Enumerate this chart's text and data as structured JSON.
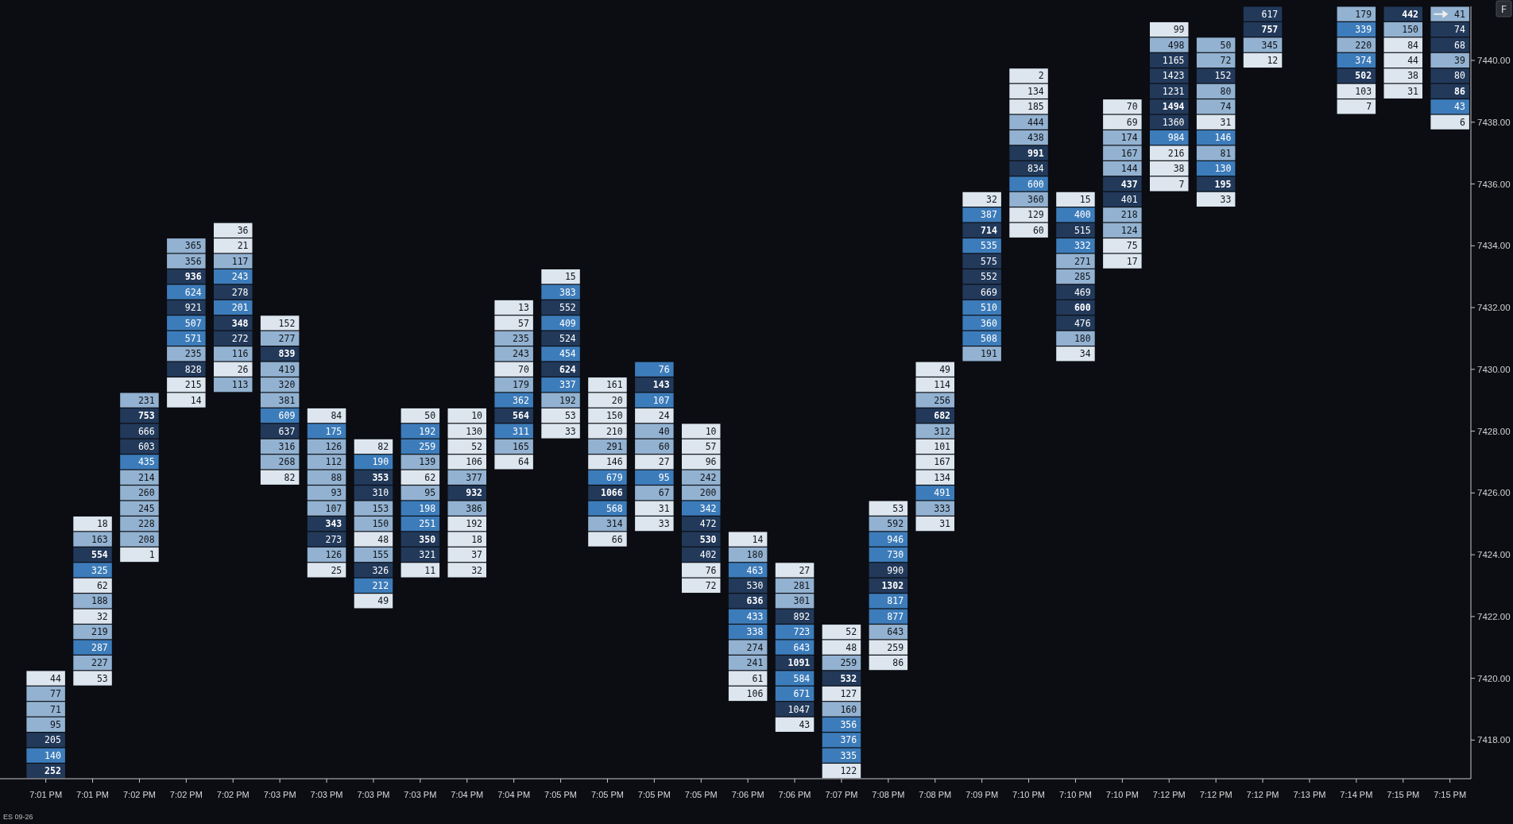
{
  "chart_data": {
    "type": "heatmap",
    "categories": [
      "7:01 PM",
      "7:01 PM",
      "7:02 PM",
      "7:02 PM",
      "7:02 PM",
      "7:03 PM",
      "7:03 PM",
      "7:03 PM",
      "7:03 PM",
      "7:04 PM",
      "7:04 PM",
      "7:05 PM",
      "7:05 PM",
      "7:05 PM",
      "7:05 PM",
      "7:06 PM",
      "7:06 PM",
      "7:07 PM",
      "7:08 PM",
      "7:08 PM",
      "7:09 PM",
      "7:10 PM",
      "7:10 PM",
      "7:10 PM",
      "7:12 PM",
      "7:12 PM",
      "7:12 PM",
      "7:13 PM",
      "7:14 PM",
      "7:15 PM",
      "7:15 PM"
    ],
    "y_categories": [
      null,
      null,
      null,
      "7440.00",
      null,
      null,
      null,
      "7438.00",
      null,
      null,
      null,
      "7436.00",
      null,
      null,
      null,
      "7434.00",
      null,
      null,
      null,
      "7432.00",
      null,
      null,
      null,
      "7430.00",
      null,
      null,
      null,
      "7428.00",
      null,
      null,
      null,
      "7426.00",
      null,
      null,
      null,
      "7424.00",
      null,
      null,
      null,
      "7422.00",
      null,
      null,
      null,
      "7420.00",
      null,
      null,
      null,
      "7418.00",
      null,
      null
    ],
    "data_labels": true,
    "cells": [
      [
        null,
        null,
        null,
        null,
        null,
        null,
        null,
        null,
        null,
        null,
        null,
        null,
        null,
        null,
        null,
        null,
        null,
        null,
        null,
        null,
        null,
        null,
        null,
        null,
        null,
        null,
        617,
        null,
        179,
        442,
        41
      ],
      [
        null,
        null,
        null,
        null,
        null,
        null,
        null,
        null,
        null,
        null,
        null,
        null,
        null,
        null,
        null,
        null,
        null,
        null,
        null,
        null,
        null,
        null,
        null,
        null,
        99,
        null,
        757,
        null,
        339,
        150,
        74
      ],
      [
        null,
        null,
        null,
        null,
        null,
        null,
        null,
        null,
        null,
        null,
        null,
        null,
        null,
        null,
        null,
        null,
        null,
        null,
        null,
        null,
        null,
        null,
        null,
        null,
        498,
        50,
        345,
        null,
        220,
        84,
        68
      ],
      [
        null,
        null,
        null,
        null,
        null,
        null,
        null,
        null,
        null,
        null,
        null,
        null,
        null,
        null,
        null,
        null,
        null,
        null,
        null,
        null,
        null,
        null,
        null,
        null,
        1165,
        72,
        12,
        null,
        374,
        44,
        39
      ],
      [
        null,
        null,
        null,
        null,
        null,
        null,
        null,
        null,
        null,
        null,
        null,
        null,
        null,
        null,
        null,
        null,
        null,
        null,
        null,
        null,
        null,
        2,
        null,
        null,
        1423,
        152,
        null,
        null,
        502,
        38,
        80
      ],
      [
        null,
        null,
        null,
        null,
        null,
        null,
        null,
        null,
        null,
        null,
        null,
        null,
        null,
        null,
        null,
        null,
        null,
        null,
        null,
        null,
        null,
        134,
        null,
        null,
        1231,
        80,
        null,
        null,
        103,
        31,
        86
      ],
      [
        null,
        null,
        null,
        null,
        null,
        null,
        null,
        null,
        null,
        null,
        null,
        null,
        null,
        null,
        null,
        null,
        null,
        null,
        null,
        null,
        null,
        185,
        null,
        70,
        1494,
        74,
        null,
        null,
        7,
        null,
        43
      ],
      [
        null,
        null,
        null,
        null,
        null,
        null,
        null,
        null,
        null,
        null,
        null,
        null,
        null,
        null,
        null,
        null,
        null,
        null,
        null,
        null,
        null,
        444,
        null,
        69,
        1360,
        31,
        null,
        null,
        null,
        null,
        6
      ],
      [
        null,
        null,
        null,
        null,
        null,
        null,
        null,
        null,
        null,
        null,
        null,
        null,
        null,
        null,
        null,
        null,
        null,
        null,
        null,
        null,
        null,
        438,
        null,
        174,
        984,
        146,
        null,
        null,
        null,
        null,
        null
      ],
      [
        null,
        null,
        null,
        null,
        null,
        null,
        null,
        null,
        null,
        null,
        null,
        null,
        null,
        null,
        null,
        null,
        null,
        null,
        null,
        null,
        null,
        991,
        null,
        167,
        216,
        81,
        null,
        null,
        null,
        null,
        null
      ],
      [
        null,
        null,
        null,
        null,
        null,
        null,
        null,
        null,
        null,
        null,
        null,
        null,
        null,
        null,
        null,
        null,
        null,
        null,
        null,
        null,
        null,
        834,
        null,
        144,
        38,
        130,
        null,
        null,
        null,
        null,
        null
      ],
      [
        null,
        null,
        null,
        null,
        null,
        null,
        null,
        null,
        null,
        null,
        null,
        null,
        null,
        null,
        null,
        null,
        null,
        null,
        null,
        null,
        null,
        600,
        null,
        437,
        7,
        195,
        null,
        null,
        null,
        null,
        null
      ],
      [
        null,
        null,
        null,
        null,
        null,
        null,
        null,
        null,
        null,
        null,
        null,
        null,
        null,
        null,
        null,
        null,
        null,
        null,
        null,
        null,
        32,
        360,
        15,
        401,
        null,
        33,
        null,
        null,
        null,
        null,
        null
      ],
      [
        null,
        null,
        null,
        null,
        null,
        null,
        null,
        null,
        null,
        null,
        null,
        null,
        null,
        null,
        null,
        null,
        null,
        null,
        null,
        null,
        387,
        129,
        400,
        218,
        null,
        null,
        null,
        null,
        null,
        null,
        null
      ],
      [
        null,
        null,
        null,
        null,
        36,
        null,
        null,
        null,
        null,
        null,
        null,
        null,
        null,
        null,
        null,
        null,
        null,
        null,
        null,
        null,
        714,
        60,
        515,
        124,
        null,
        null,
        null,
        null,
        null,
        null,
        null
      ],
      [
        null,
        null,
        null,
        365,
        21,
        null,
        null,
        null,
        null,
        null,
        null,
        null,
        null,
        null,
        null,
        null,
        null,
        null,
        null,
        null,
        535,
        null,
        332,
        75,
        null,
        null,
        null,
        null,
        null,
        null,
        null
      ],
      [
        null,
        null,
        null,
        356,
        117,
        null,
        null,
        null,
        null,
        null,
        null,
        null,
        null,
        null,
        null,
        null,
        null,
        null,
        null,
        null,
        575,
        null,
        271,
        17,
        null,
        null,
        null,
        null,
        null,
        null,
        null
      ],
      [
        null,
        null,
        null,
        936,
        243,
        null,
        null,
        null,
        null,
        null,
        null,
        15,
        null,
        null,
        null,
        null,
        null,
        null,
        null,
        null,
        552,
        null,
        285,
        null,
        null,
        null,
        null,
        null,
        null,
        null,
        null
      ],
      [
        null,
        null,
        null,
        624,
        278,
        null,
        null,
        null,
        null,
        null,
        null,
        383,
        null,
        null,
        null,
        null,
        null,
        null,
        null,
        null,
        669,
        null,
        469,
        null,
        null,
        null,
        null,
        null,
        null,
        null,
        null
      ],
      [
        null,
        null,
        null,
        921,
        201,
        null,
        null,
        null,
        null,
        null,
        13,
        552,
        null,
        null,
        null,
        null,
        null,
        null,
        null,
        null,
        510,
        null,
        600,
        null,
        null,
        null,
        null,
        null,
        null,
        null,
        null
      ],
      [
        null,
        null,
        null,
        507,
        348,
        152,
        null,
        null,
        null,
        null,
        57,
        409,
        null,
        null,
        null,
        null,
        null,
        null,
        null,
        null,
        360,
        null,
        476,
        null,
        null,
        null,
        null,
        null,
        null,
        null,
        null
      ],
      [
        null,
        null,
        null,
        571,
        272,
        277,
        null,
        null,
        null,
        null,
        235,
        524,
        null,
        null,
        null,
        null,
        null,
        null,
        null,
        null,
        508,
        null,
        180,
        null,
        null,
        null,
        null,
        null,
        null,
        null,
        null
      ],
      [
        null,
        null,
        null,
        235,
        116,
        839,
        null,
        null,
        null,
        null,
        243,
        454,
        null,
        null,
        null,
        null,
        null,
        null,
        null,
        null,
        191,
        null,
        34,
        null,
        null,
        null,
        null,
        null,
        null,
        null,
        null
      ],
      [
        null,
        null,
        null,
        828,
        26,
        419,
        null,
        null,
        null,
        null,
        70,
        624,
        null,
        76,
        null,
        null,
        null,
        null,
        null,
        49,
        null,
        null,
        null,
        null,
        null,
        null,
        null,
        null,
        null,
        null,
        null
      ],
      [
        null,
        null,
        null,
        215,
        113,
        320,
        null,
        null,
        null,
        null,
        179,
        337,
        161,
        143,
        null,
        null,
        null,
        null,
        null,
        114,
        null,
        null,
        null,
        null,
        null,
        null,
        null,
        null,
        null,
        null,
        null
      ],
      [
        null,
        null,
        231,
        14,
        null,
        381,
        null,
        null,
        null,
        null,
        362,
        192,
        20,
        107,
        null,
        null,
        null,
        null,
        null,
        256,
        null,
        null,
        null,
        null,
        null,
        null,
        null,
        null,
        null,
        null,
        null
      ],
      [
        null,
        null,
        753,
        null,
        null,
        609,
        84,
        null,
        50,
        10,
        564,
        53,
        150,
        24,
        null,
        null,
        null,
        null,
        null,
        682,
        null,
        null,
        null,
        null,
        null,
        null,
        null,
        null,
        null,
        null,
        null
      ],
      [
        null,
        null,
        666,
        null,
        null,
        637,
        175,
        null,
        192,
        130,
        311,
        33,
        210,
        40,
        10,
        null,
        null,
        null,
        null,
        312,
        null,
        null,
        null,
        null,
        null,
        null,
        null,
        null,
        null,
        null,
        null
      ],
      [
        null,
        null,
        603,
        null,
        null,
        316,
        126,
        82,
        259,
        52,
        165,
        null,
        291,
        60,
        57,
        null,
        null,
        null,
        null,
        101,
        null,
        null,
        null,
        null,
        null,
        null,
        null,
        null,
        null,
        null,
        null
      ],
      [
        null,
        null,
        435,
        null,
        null,
        268,
        112,
        190,
        139,
        106,
        64,
        null,
        146,
        27,
        96,
        null,
        null,
        null,
        null,
        167,
        null,
        null,
        null,
        null,
        null,
        null,
        null,
        null,
        null,
        null,
        null
      ],
      [
        null,
        null,
        214,
        null,
        null,
        82,
        88,
        353,
        62,
        377,
        null,
        null,
        679,
        95,
        242,
        null,
        null,
        null,
        null,
        134,
        null,
        null,
        null,
        null,
        null,
        null,
        null,
        null,
        null,
        null,
        null
      ],
      [
        null,
        null,
        260,
        null,
        null,
        null,
        93,
        310,
        95,
        932,
        null,
        null,
        1066,
        67,
        200,
        null,
        null,
        null,
        null,
        491,
        null,
        null,
        null,
        null,
        null,
        null,
        null,
        null,
        null,
        null,
        null
      ],
      [
        null,
        null,
        245,
        null,
        null,
        null,
        107,
        153,
        198,
        386,
        null,
        null,
        568,
        31,
        342,
        null,
        null,
        null,
        53,
        333,
        null,
        null,
        null,
        null,
        null,
        null,
        null,
        null,
        null,
        null,
        null
      ],
      [
        null,
        18,
        228,
        null,
        null,
        null,
        343,
        150,
        251,
        192,
        null,
        null,
        314,
        33,
        472,
        null,
        null,
        null,
        592,
        31,
        null,
        null,
        null,
        null,
        null,
        null,
        null,
        null,
        null,
        null,
        null
      ],
      [
        null,
        163,
        208,
        null,
        null,
        null,
        273,
        48,
        350,
        18,
        null,
        null,
        66,
        null,
        530,
        14,
        null,
        null,
        946,
        null,
        null,
        null,
        null,
        null,
        null,
        null,
        null,
        null,
        null,
        null,
        null
      ],
      [
        null,
        554,
        1,
        null,
        null,
        null,
        126,
        155,
        321,
        37,
        null,
        null,
        null,
        null,
        402,
        180,
        null,
        null,
        730,
        null,
        null,
        null,
        null,
        null,
        null,
        null,
        null,
        null,
        null,
        null,
        null
      ],
      [
        null,
        325,
        null,
        null,
        null,
        null,
        25,
        326,
        11,
        32,
        null,
        null,
        null,
        null,
        76,
        463,
        27,
        null,
        990,
        null,
        null,
        null,
        null,
        null,
        null,
        null,
        null,
        null,
        null,
        null,
        null
      ],
      [
        null,
        62,
        null,
        null,
        null,
        null,
        null,
        212,
        null,
        null,
        null,
        null,
        null,
        null,
        72,
        530,
        281,
        null,
        1302,
        null,
        null,
        null,
        null,
        null,
        null,
        null,
        null,
        null,
        null,
        null,
        null
      ],
      [
        null,
        188,
        null,
        null,
        null,
        null,
        null,
        49,
        null,
        null,
        null,
        null,
        null,
        null,
        null,
        636,
        301,
        null,
        817,
        null,
        null,
        null,
        null,
        null,
        null,
        null,
        null,
        null,
        null,
        null,
        null
      ],
      [
        null,
        32,
        null,
        null,
        null,
        null,
        null,
        null,
        null,
        null,
        null,
        null,
        null,
        null,
        null,
        433,
        892,
        null,
        877,
        null,
        null,
        null,
        null,
        null,
        null,
        null,
        null,
        null,
        null,
        null,
        null
      ],
      [
        null,
        219,
        null,
        null,
        null,
        null,
        null,
        null,
        null,
        null,
        null,
        null,
        null,
        null,
        null,
        338,
        723,
        52,
        643,
        null,
        null,
        null,
        null,
        null,
        null,
        null,
        null,
        null,
        null,
        null,
        null
      ],
      [
        null,
        287,
        null,
        null,
        null,
        null,
        null,
        null,
        null,
        null,
        null,
        null,
        null,
        null,
        null,
        274,
        643,
        48,
        259,
        null,
        null,
        null,
        null,
        null,
        null,
        null,
        null,
        null,
        null,
        null,
        null
      ],
      [
        null,
        227,
        null,
        null,
        null,
        null,
        null,
        null,
        null,
        null,
        null,
        null,
        null,
        null,
        null,
        241,
        1091,
        259,
        86,
        null,
        null,
        null,
        null,
        null,
        null,
        null,
        null,
        null,
        null,
        null,
        null
      ],
      [
        44,
        53,
        null,
        null,
        null,
        null,
        null,
        null,
        null,
        null,
        null,
        null,
        null,
        null,
        null,
        61,
        584,
        532,
        null,
        null,
        null,
        null,
        null,
        null,
        null,
        null,
        null,
        null,
        null,
        null,
        null
      ],
      [
        77,
        null,
        null,
        null,
        null,
        null,
        null,
        null,
        null,
        null,
        null,
        null,
        null,
        null,
        null,
        106,
        671,
        127,
        null,
        null,
        null,
        null,
        null,
        null,
        null,
        null,
        null,
        null,
        null,
        null,
        null
      ],
      [
        71,
        null,
        null,
        null,
        null,
        null,
        null,
        null,
        null,
        null,
        null,
        null,
        null,
        null,
        null,
        null,
        1047,
        160,
        null,
        null,
        null,
        null,
        null,
        null,
        null,
        null,
        null,
        null,
        null,
        null,
        null
      ],
      [
        95,
        null,
        null,
        null,
        null,
        null,
        null,
        null,
        null,
        null,
        null,
        null,
        null,
        null,
        null,
        null,
        43,
        356,
        null,
        null,
        null,
        null,
        null,
        null,
        null,
        null,
        null,
        null,
        null,
        null,
        null
      ],
      [
        205,
        null,
        null,
        null,
        null,
        null,
        null,
        null,
        null,
        null,
        null,
        null,
        null,
        null,
        null,
        null,
        null,
        376,
        null,
        null,
        null,
        null,
        null,
        null,
        null,
        null,
        null,
        null,
        null,
        null,
        null
      ],
      [
        140,
        null,
        null,
        null,
        null,
        null,
        null,
        null,
        null,
        null,
        null,
        null,
        null,
        null,
        null,
        null,
        null,
        335,
        null,
        null,
        null,
        null,
        null,
        null,
        null,
        null,
        null,
        null,
        null,
        null,
        null
      ],
      [
        252,
        null,
        null,
        null,
        null,
        null,
        null,
        null,
        null,
        null,
        null,
        null,
        null,
        null,
        null,
        null,
        null,
        122,
        null,
        null,
        null,
        null,
        null,
        null,
        null,
        null,
        null,
        null,
        null,
        null,
        null
      ]
    ],
    "annotations": [
      "ES 09-26",
      "F"
    ]
  }
}
